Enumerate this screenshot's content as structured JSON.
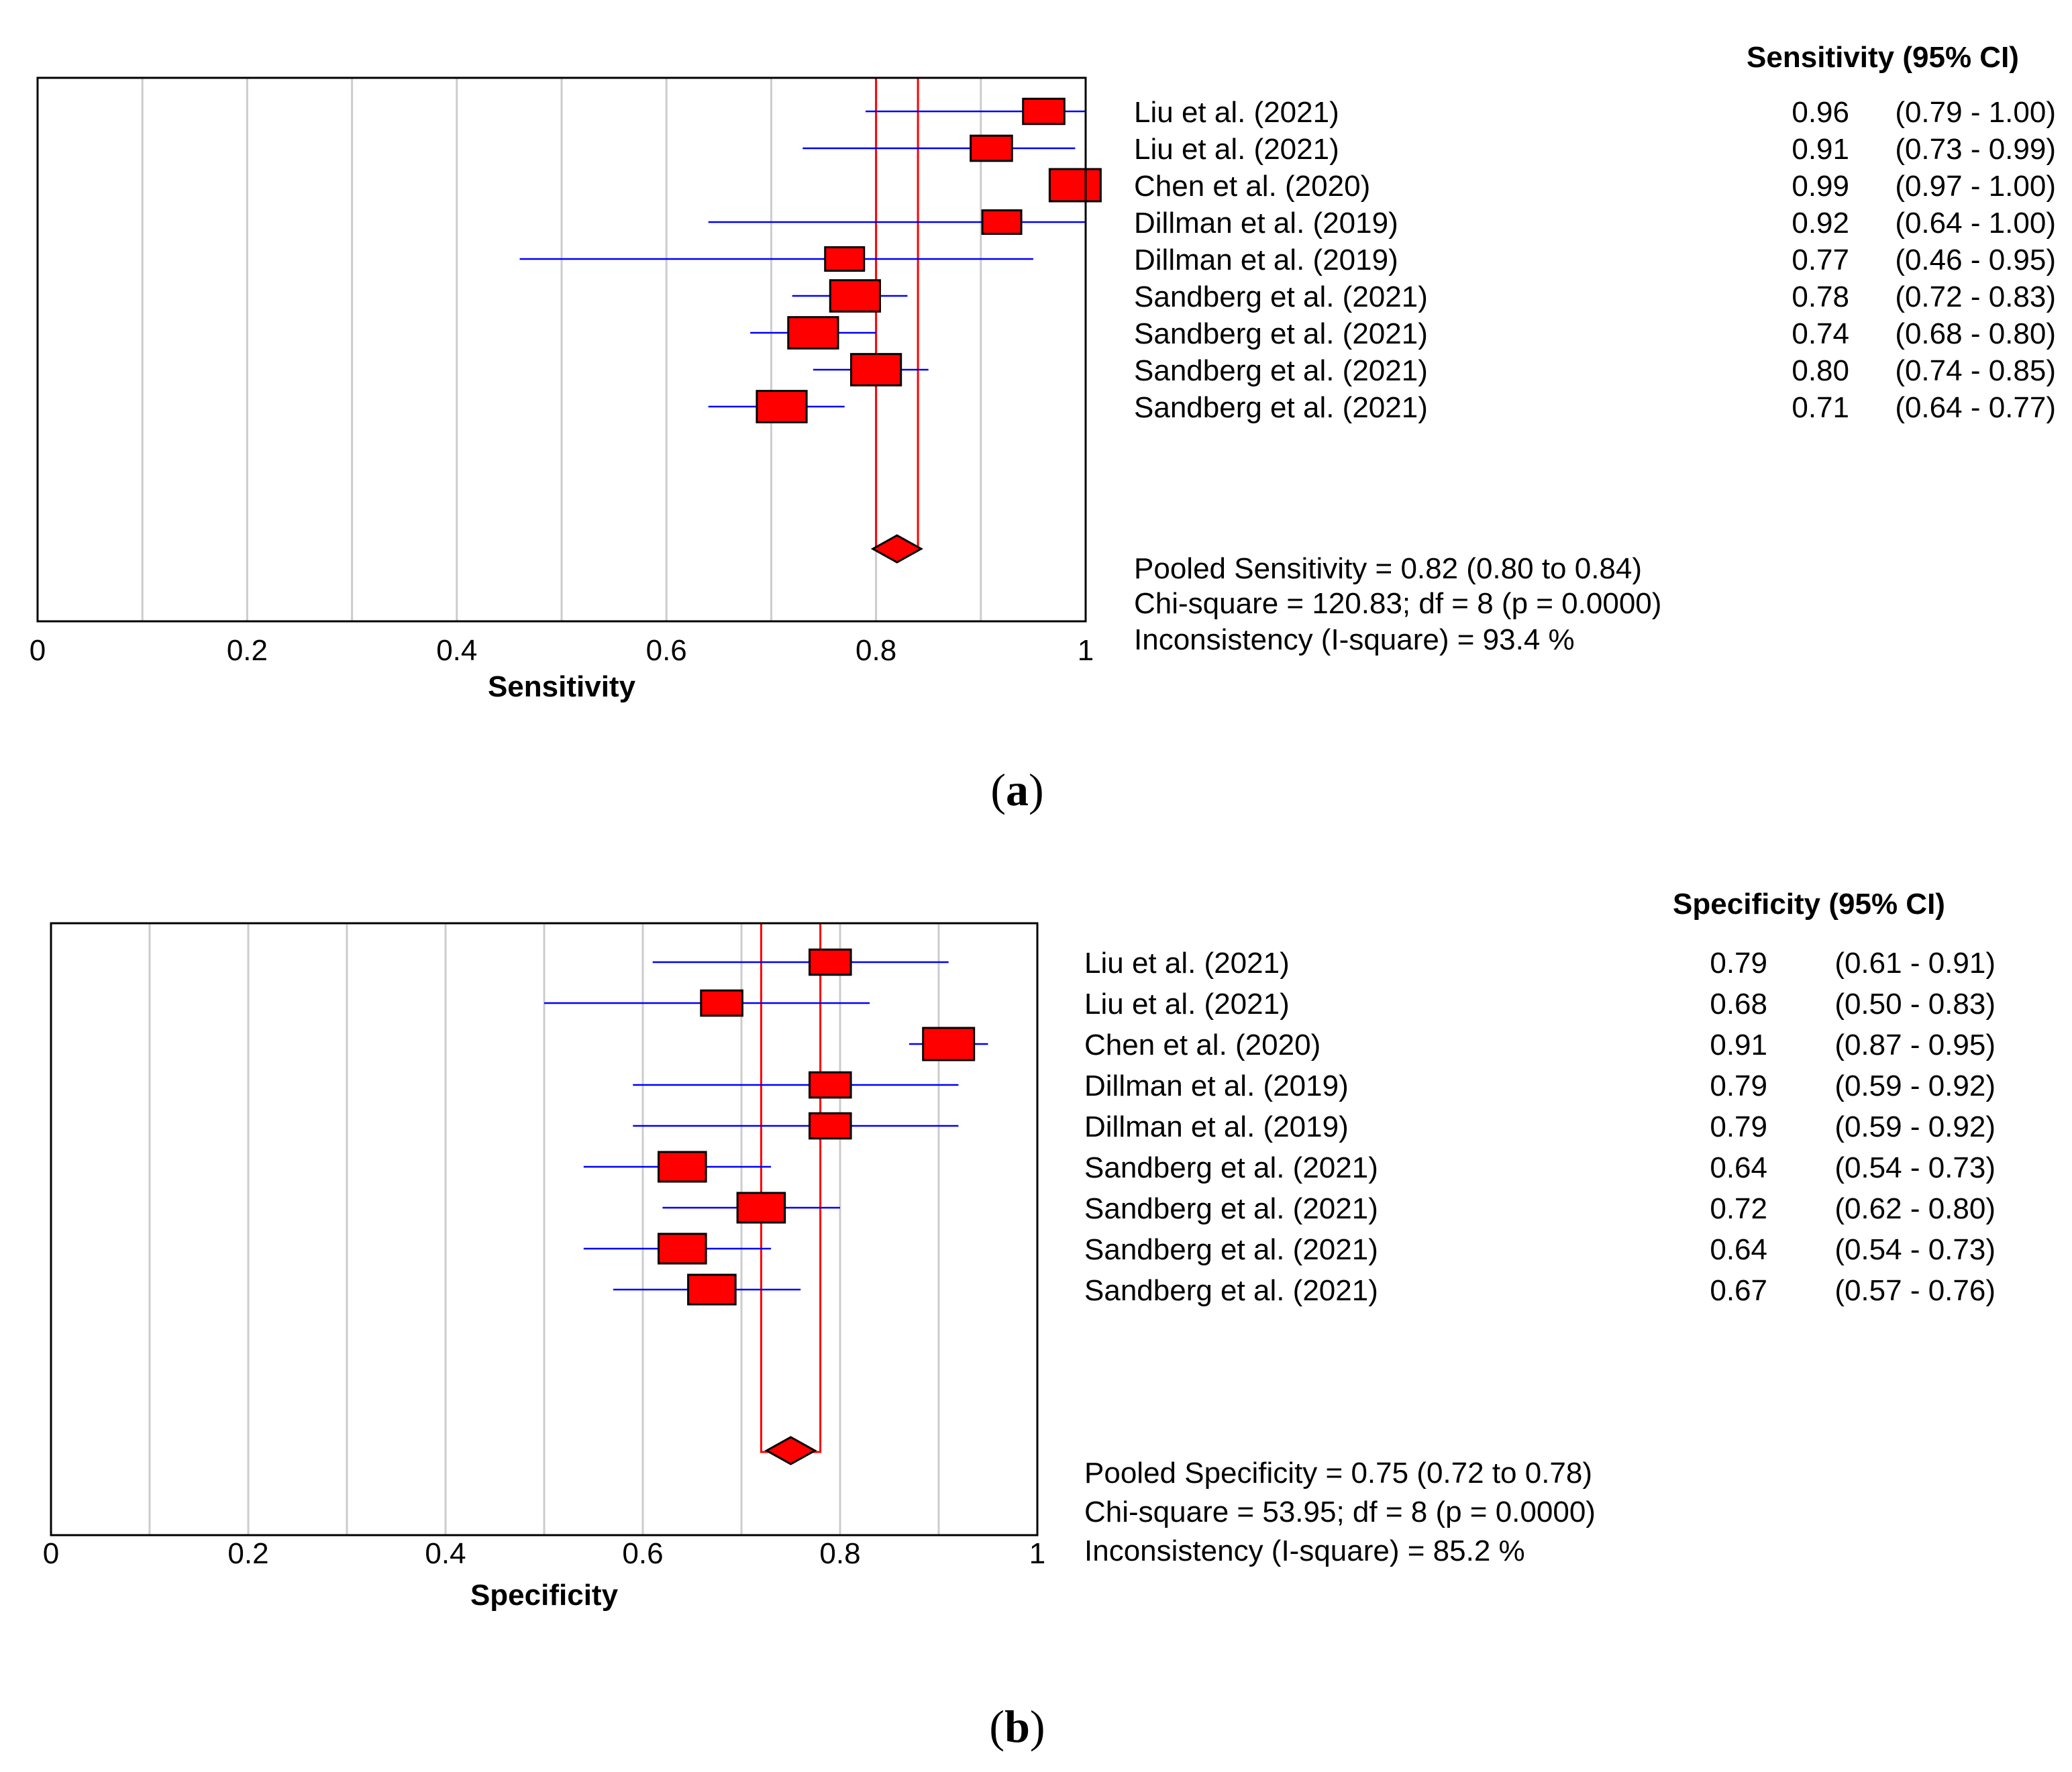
{
  "colors": {
    "box": "#ff0000",
    "ci": "#0000ff",
    "pooled": "#ff0000",
    "grid": "#cccccc",
    "frame": "#000000"
  },
  "chart_data": [
    {
      "type": "forest",
      "panel_label": "a",
      "xlabel": "Sensitivity",
      "xlim": [
        0,
        1
      ],
      "ticks": [
        "0",
        "0.2",
        "0.4",
        "0.6",
        "0.8",
        "1"
      ],
      "tick_values": [
        0,
        0.2,
        0.4,
        0.6,
        0.8,
        1
      ],
      "column_header": "Sensitivity (95% CI)",
      "studies": [
        {
          "name": "Liu et al. (2021)",
          "estimate": 0.96,
          "lower": 0.79,
          "upper": 1.0,
          "est_text": "0.96",
          "ci_text": "(0.79 - 1.00)",
          "weight": 0.6
        },
        {
          "name": "Liu et al. (2021)",
          "estimate": 0.91,
          "lower": 0.73,
          "upper": 0.99,
          "est_text": "0.91",
          "ci_text": "(0.73 - 0.99)",
          "weight": 0.6
        },
        {
          "name": "Chen et al. (2020)",
          "estimate": 0.99,
          "lower": 0.97,
          "upper": 1.0,
          "est_text": "0.99",
          "ci_text": "(0.97 - 1.00)",
          "weight": 1.0
        },
        {
          "name": "Dillman et al. (2019)",
          "estimate": 0.92,
          "lower": 0.64,
          "upper": 1.0,
          "est_text": "0.92",
          "ci_text": "(0.64 - 1.00)",
          "weight": 0.5
        },
        {
          "name": "Dillman et al. (2019)",
          "estimate": 0.77,
          "lower": 0.46,
          "upper": 0.95,
          "est_text": "0.77",
          "ci_text": "(0.46 - 0.95)",
          "weight": 0.5
        },
        {
          "name": "Sandberg et al. (2021)",
          "estimate": 0.78,
          "lower": 0.72,
          "upper": 0.83,
          "est_text": "0.78",
          "ci_text": "(0.72 - 0.83)",
          "weight": 0.95
        },
        {
          "name": "Sandberg et al. (2021)",
          "estimate": 0.74,
          "lower": 0.68,
          "upper": 0.8,
          "est_text": "0.74",
          "ci_text": "(0.68 - 0.80)",
          "weight": 0.95
        },
        {
          "name": "Sandberg et al. (2021)",
          "estimate": 0.8,
          "lower": 0.74,
          "upper": 0.85,
          "est_text": "0.80",
          "ci_text": "(0.74 - 0.85)",
          "weight": 0.95
        },
        {
          "name": "Sandberg et al. (2021)",
          "estimate": 0.71,
          "lower": 0.64,
          "upper": 0.77,
          "est_text": "0.71",
          "ci_text": "(0.64 - 0.77)",
          "weight": 0.95
        }
      ],
      "pooled": {
        "estimate": 0.82,
        "lower": 0.8,
        "upper": 0.84
      },
      "stats": [
        "Pooled Sensitivity = 0.82 (0.80 to 0.84)",
        "Chi-square = 120.83; df =  8 (p = 0.0000)",
        "Inconsistency (I-square) = 93.4 %"
      ]
    },
    {
      "type": "forest",
      "panel_label": "b",
      "xlabel": "Specificity",
      "xlim": [
        0,
        1
      ],
      "ticks": [
        "0",
        "0.2",
        "0.4",
        "0.6",
        "0.8",
        "1"
      ],
      "tick_values": [
        0,
        0.2,
        0.4,
        0.6,
        0.8,
        1
      ],
      "column_header": "Specificity (95% CI)",
      "studies": [
        {
          "name": "Liu et al. (2021)",
          "estimate": 0.79,
          "lower": 0.61,
          "upper": 0.91,
          "est_text": "0.79",
          "ci_text": "(0.61 - 0.91)",
          "weight": 0.6
        },
        {
          "name": "Liu et al. (2021)",
          "estimate": 0.68,
          "lower": 0.5,
          "upper": 0.83,
          "est_text": "0.68",
          "ci_text": "(0.50 - 0.83)",
          "weight": 0.6
        },
        {
          "name": "Chen et al. (2020)",
          "estimate": 0.91,
          "lower": 0.87,
          "upper": 0.95,
          "est_text": "0.91",
          "ci_text": "(0.87 - 0.95)",
          "weight": 1.0
        },
        {
          "name": "Dillman et al. (2019)",
          "estimate": 0.79,
          "lower": 0.59,
          "upper": 0.92,
          "est_text": "0.79",
          "ci_text": "(0.59 - 0.92)",
          "weight": 0.6
        },
        {
          "name": "Dillman et al. (2019)",
          "estimate": 0.79,
          "lower": 0.59,
          "upper": 0.92,
          "est_text": "0.79",
          "ci_text": "(0.59 - 0.92)",
          "weight": 0.6
        },
        {
          "name": "Sandberg et al. (2021)",
          "estimate": 0.64,
          "lower": 0.54,
          "upper": 0.73,
          "est_text": "0.64",
          "ci_text": "(0.54 - 0.73)",
          "weight": 0.85
        },
        {
          "name": "Sandberg et al. (2021)",
          "estimate": 0.72,
          "lower": 0.62,
          "upper": 0.8,
          "est_text": "0.72",
          "ci_text": "(0.62 - 0.80)",
          "weight": 0.85
        },
        {
          "name": "Sandberg et al. (2021)",
          "estimate": 0.64,
          "lower": 0.54,
          "upper": 0.73,
          "est_text": "0.64",
          "ci_text": "(0.54 - 0.73)",
          "weight": 0.85
        },
        {
          "name": "Sandberg et al. (2021)",
          "estimate": 0.67,
          "lower": 0.57,
          "upper": 0.76,
          "est_text": "0.67",
          "ci_text": "(0.57 - 0.76)",
          "weight": 0.85
        }
      ],
      "pooled": {
        "estimate": 0.75,
        "lower": 0.72,
        "upper": 0.78
      },
      "stats": [
        "Pooled Specificity = 0.75 (0.72 to 0.78)",
        "Chi-square = 53.95; df =  8 (p = 0.0000)",
        "Inconsistency (I-square) = 85.2 %"
      ]
    }
  ]
}
